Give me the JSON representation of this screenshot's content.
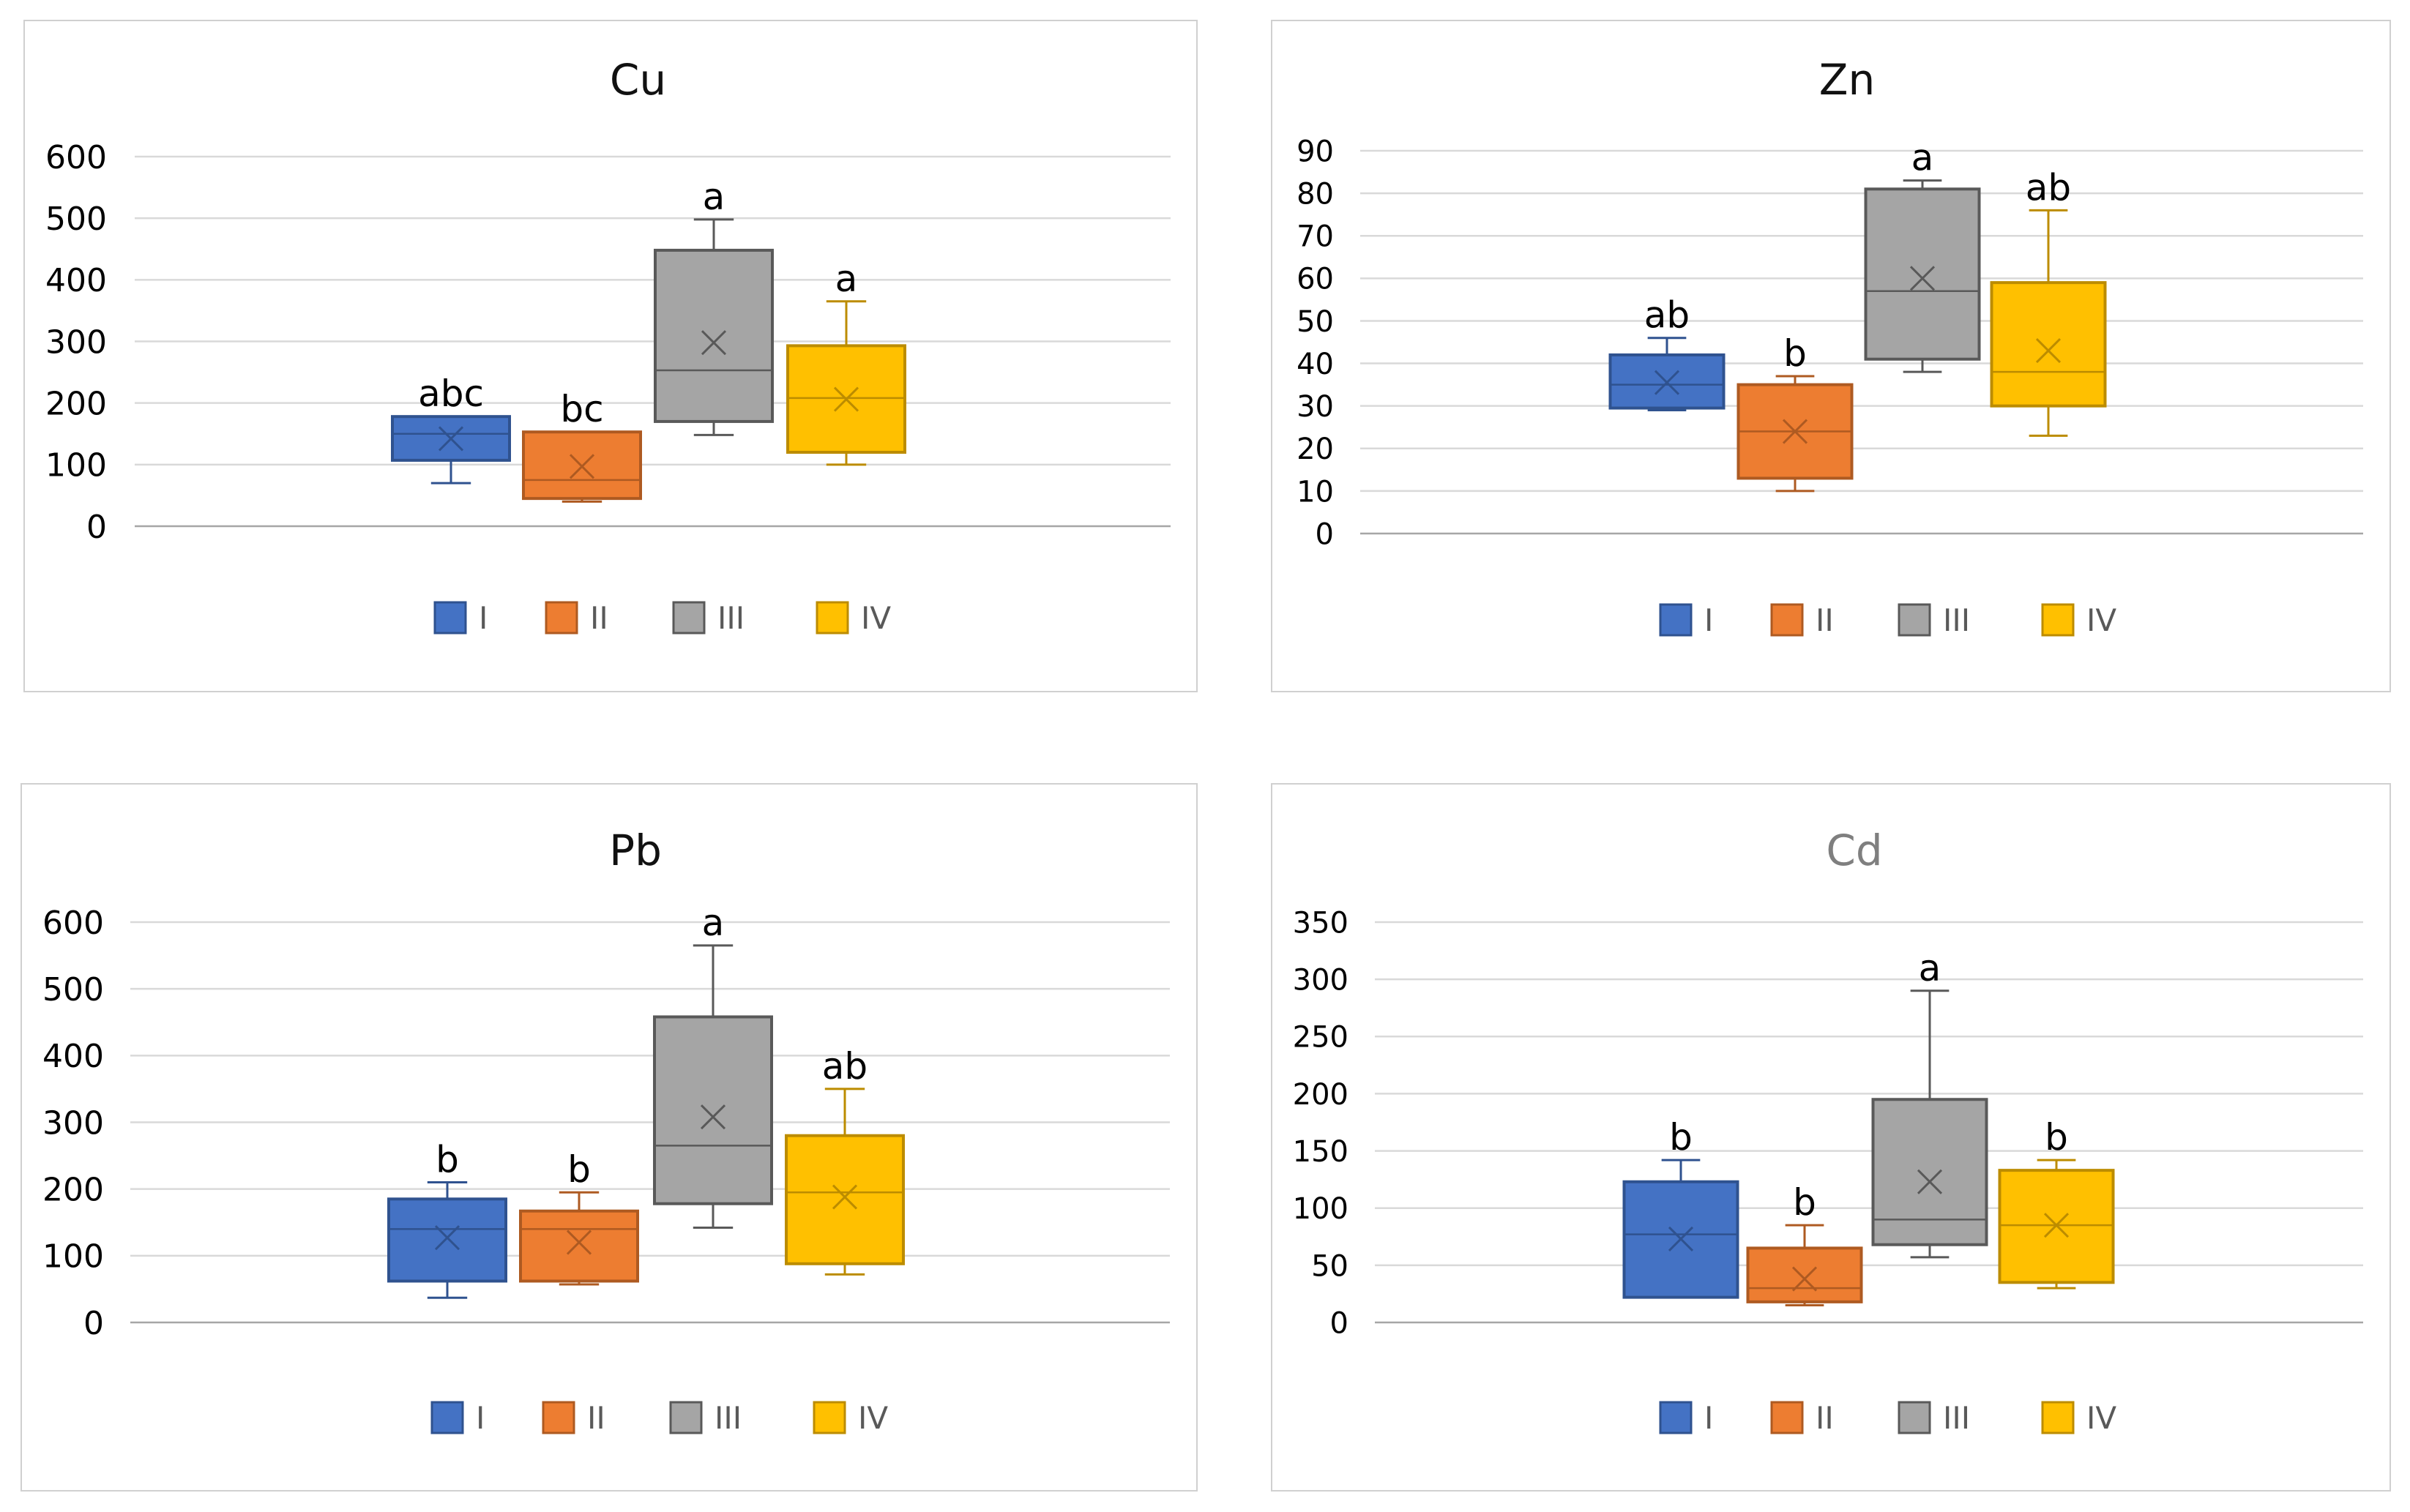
{
  "chart_data": [
    {
      "type": "box",
      "title": "Cu",
      "title_color": "#111111",
      "ylim": [
        0,
        600
      ],
      "yticks": [
        0,
        100,
        200,
        300,
        400,
        500,
        600
      ],
      "yticklabels": [
        "0",
        "100",
        "200",
        "300",
        "400",
        "500",
        "600"
      ],
      "grid": true,
      "legend_position": "bottom",
      "groups": [
        {
          "name": "I",
          "min": 70,
          "q1": 107,
          "median": 150,
          "q3": 178,
          "max": 178,
          "mean": 142,
          "label": "abc"
        },
        {
          "name": "II",
          "min": 40,
          "q1": 45,
          "median": 75,
          "q3": 153,
          "max": 153,
          "mean": 97,
          "label": "bc"
        },
        {
          "name": "III",
          "min": 148,
          "q1": 170,
          "median": 253,
          "q3": 448,
          "max": 498,
          "mean": 298,
          "label": "a"
        },
        {
          "name": "IV",
          "min": 100,
          "q1": 120,
          "median": 208,
          "q3": 293,
          "max": 365,
          "mean": 206,
          "label": "a"
        }
      ]
    },
    {
      "type": "box",
      "title": "Zn",
      "title_color": "#111111",
      "ylim": [
        0,
        90
      ],
      "yticks": [
        0,
        10,
        20,
        30,
        40,
        50,
        60,
        70,
        80,
        90
      ],
      "yticklabels": [
        "0",
        "10",
        "20",
        "30",
        "40",
        "50",
        "60",
        "70",
        "80",
        "90"
      ],
      "grid": true,
      "legend_position": "bottom",
      "groups": [
        {
          "name": "I",
          "min": 29,
          "q1": 29.5,
          "median": 35,
          "q3": 42,
          "max": 46,
          "mean": 35.5,
          "label": "ab"
        },
        {
          "name": "II",
          "min": 10,
          "q1": 13,
          "median": 24,
          "q3": 35,
          "max": 37,
          "mean": 24,
          "label": "b"
        },
        {
          "name": "III",
          "min": 38,
          "q1": 41,
          "median": 57,
          "q3": 81,
          "max": 83,
          "mean": 60,
          "label": "a"
        },
        {
          "name": "IV",
          "min": 23,
          "q1": 30,
          "median": 38,
          "q3": 59,
          "max": 76,
          "mean": 43,
          "label": "ab"
        }
      ]
    },
    {
      "type": "box",
      "title": "Pb",
      "title_color": "#111111",
      "ylim": [
        0,
        600
      ],
      "yticks": [
        0,
        100,
        200,
        300,
        400,
        500,
        600
      ],
      "yticklabels": [
        "0",
        "100",
        "200",
        "300",
        "400",
        "500",
        "600"
      ],
      "grid": true,
      "legend_position": "bottom",
      "groups": [
        {
          "name": "I",
          "min": 37,
          "q1": 62,
          "median": 140,
          "q3": 185,
          "max": 210,
          "mean": 127,
          "label": "b"
        },
        {
          "name": "II",
          "min": 57,
          "q1": 62,
          "median": 140,
          "q3": 167,
          "max": 195,
          "mean": 120,
          "label": "b"
        },
        {
          "name": "III",
          "min": 142,
          "q1": 178,
          "median": 265,
          "q3": 458,
          "max": 565,
          "mean": 308,
          "label": "a"
        },
        {
          "name": "IV",
          "min": 72,
          "q1": 88,
          "median": 195,
          "q3": 280,
          "max": 350,
          "mean": 188,
          "label": "ab"
        }
      ]
    },
    {
      "type": "box",
      "title": "Cd",
      "title_color": "#7f7f7f",
      "ylim": [
        0,
        350
      ],
      "yticks": [
        0,
        50,
        100,
        150,
        200,
        250,
        300,
        350
      ],
      "yticklabels": [
        "0",
        "50",
        "100",
        "150",
        "200",
        "250",
        "300",
        "350"
      ],
      "grid": true,
      "legend_position": "bottom",
      "groups": [
        {
          "name": "I",
          "min": 22,
          "q1": 22,
          "median": 77,
          "q3": 123,
          "max": 142,
          "mean": 73,
          "label": "b"
        },
        {
          "name": "II",
          "min": 15,
          "q1": 18,
          "median": 30,
          "q3": 65,
          "max": 85,
          "mean": 38,
          "label": "b"
        },
        {
          "name": "III",
          "min": 57,
          "q1": 68,
          "median": 90,
          "q3": 195,
          "max": 290,
          "mean": 123,
          "label": "a"
        },
        {
          "name": "IV",
          "min": 30,
          "q1": 35,
          "median": 85,
          "q3": 133,
          "max": 142,
          "mean": 85,
          "label": "b"
        }
      ]
    }
  ],
  "series_colors": {
    "I": {
      "fill": "#4472c4",
      "stroke": "#2f528f"
    },
    "II": {
      "fill": "#ed7d31",
      "stroke": "#ae5a21"
    },
    "III": {
      "fill": "#a5a5a5",
      "stroke": "#595959"
    },
    "IV": {
      "fill": "#ffc000",
      "stroke": "#bc8c00"
    }
  },
  "legend_labels": [
    "I",
    "II",
    "III",
    "IV"
  ]
}
